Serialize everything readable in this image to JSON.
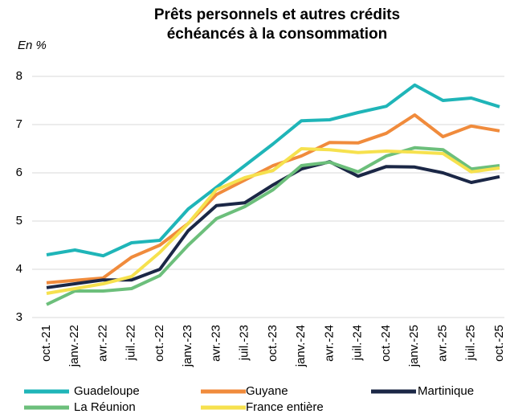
{
  "chart_data": {
    "type": "line",
    "title": [
      "Prêts personnels et autres crédits",
      "échéancés à la consommation"
    ],
    "y_label": "En %",
    "categories": [
      "oct.-21",
      "janv.-22",
      "avr.-22",
      "juil.-22",
      "oct.-22",
      "janv.-23",
      "avr.-23",
      "juil.-23",
      "oct.-23",
      "janv.-24",
      "avr.-24",
      "juil.-24",
      "oct.-24",
      "janv.-25",
      "avr.-25",
      "juil.-25",
      "oct.-25"
    ],
    "series": [
      {
        "name": "Guadeloupe",
        "color": "#1fb5b8",
        "values": [
          4.3,
          4.4,
          4.28,
          4.55,
          4.6,
          5.25,
          5.7,
          6.15,
          6.6,
          7.08,
          7.1,
          7.25,
          7.38,
          7.82,
          7.5,
          7.55,
          7.37
        ]
      },
      {
        "name": "Guyane",
        "color": "#f08b3c",
        "values": [
          3.72,
          3.77,
          3.82,
          4.25,
          4.5,
          4.95,
          5.55,
          5.85,
          6.15,
          6.35,
          6.63,
          6.62,
          6.82,
          7.2,
          6.75,
          6.97,
          6.87
        ]
      },
      {
        "name": "Martinique",
        "color": "#1b2746",
        "values": [
          3.62,
          3.7,
          3.78,
          3.78,
          4.0,
          4.8,
          5.32,
          5.38,
          5.75,
          6.08,
          6.23,
          5.93,
          6.13,
          6.12,
          6.0,
          5.8,
          5.92
        ]
      },
      {
        "name": "La Réunion",
        "color": "#6cbf7b",
        "values": [
          3.27,
          3.55,
          3.55,
          3.6,
          3.87,
          4.5,
          5.05,
          5.3,
          5.65,
          6.15,
          6.22,
          6.02,
          6.35,
          6.52,
          6.48,
          6.08,
          6.15
        ]
      },
      {
        "name": "France entière",
        "color": "#f6e14e",
        "values": [
          3.5,
          3.6,
          3.7,
          3.85,
          4.35,
          4.95,
          5.65,
          5.9,
          6.05,
          6.5,
          6.48,
          6.42,
          6.45,
          6.43,
          6.4,
          6.02,
          6.1
        ]
      }
    ],
    "ylim": [
      3,
      8
    ],
    "yticks": [
      3,
      4,
      5,
      6,
      7,
      8
    ],
    "grid": true
  }
}
